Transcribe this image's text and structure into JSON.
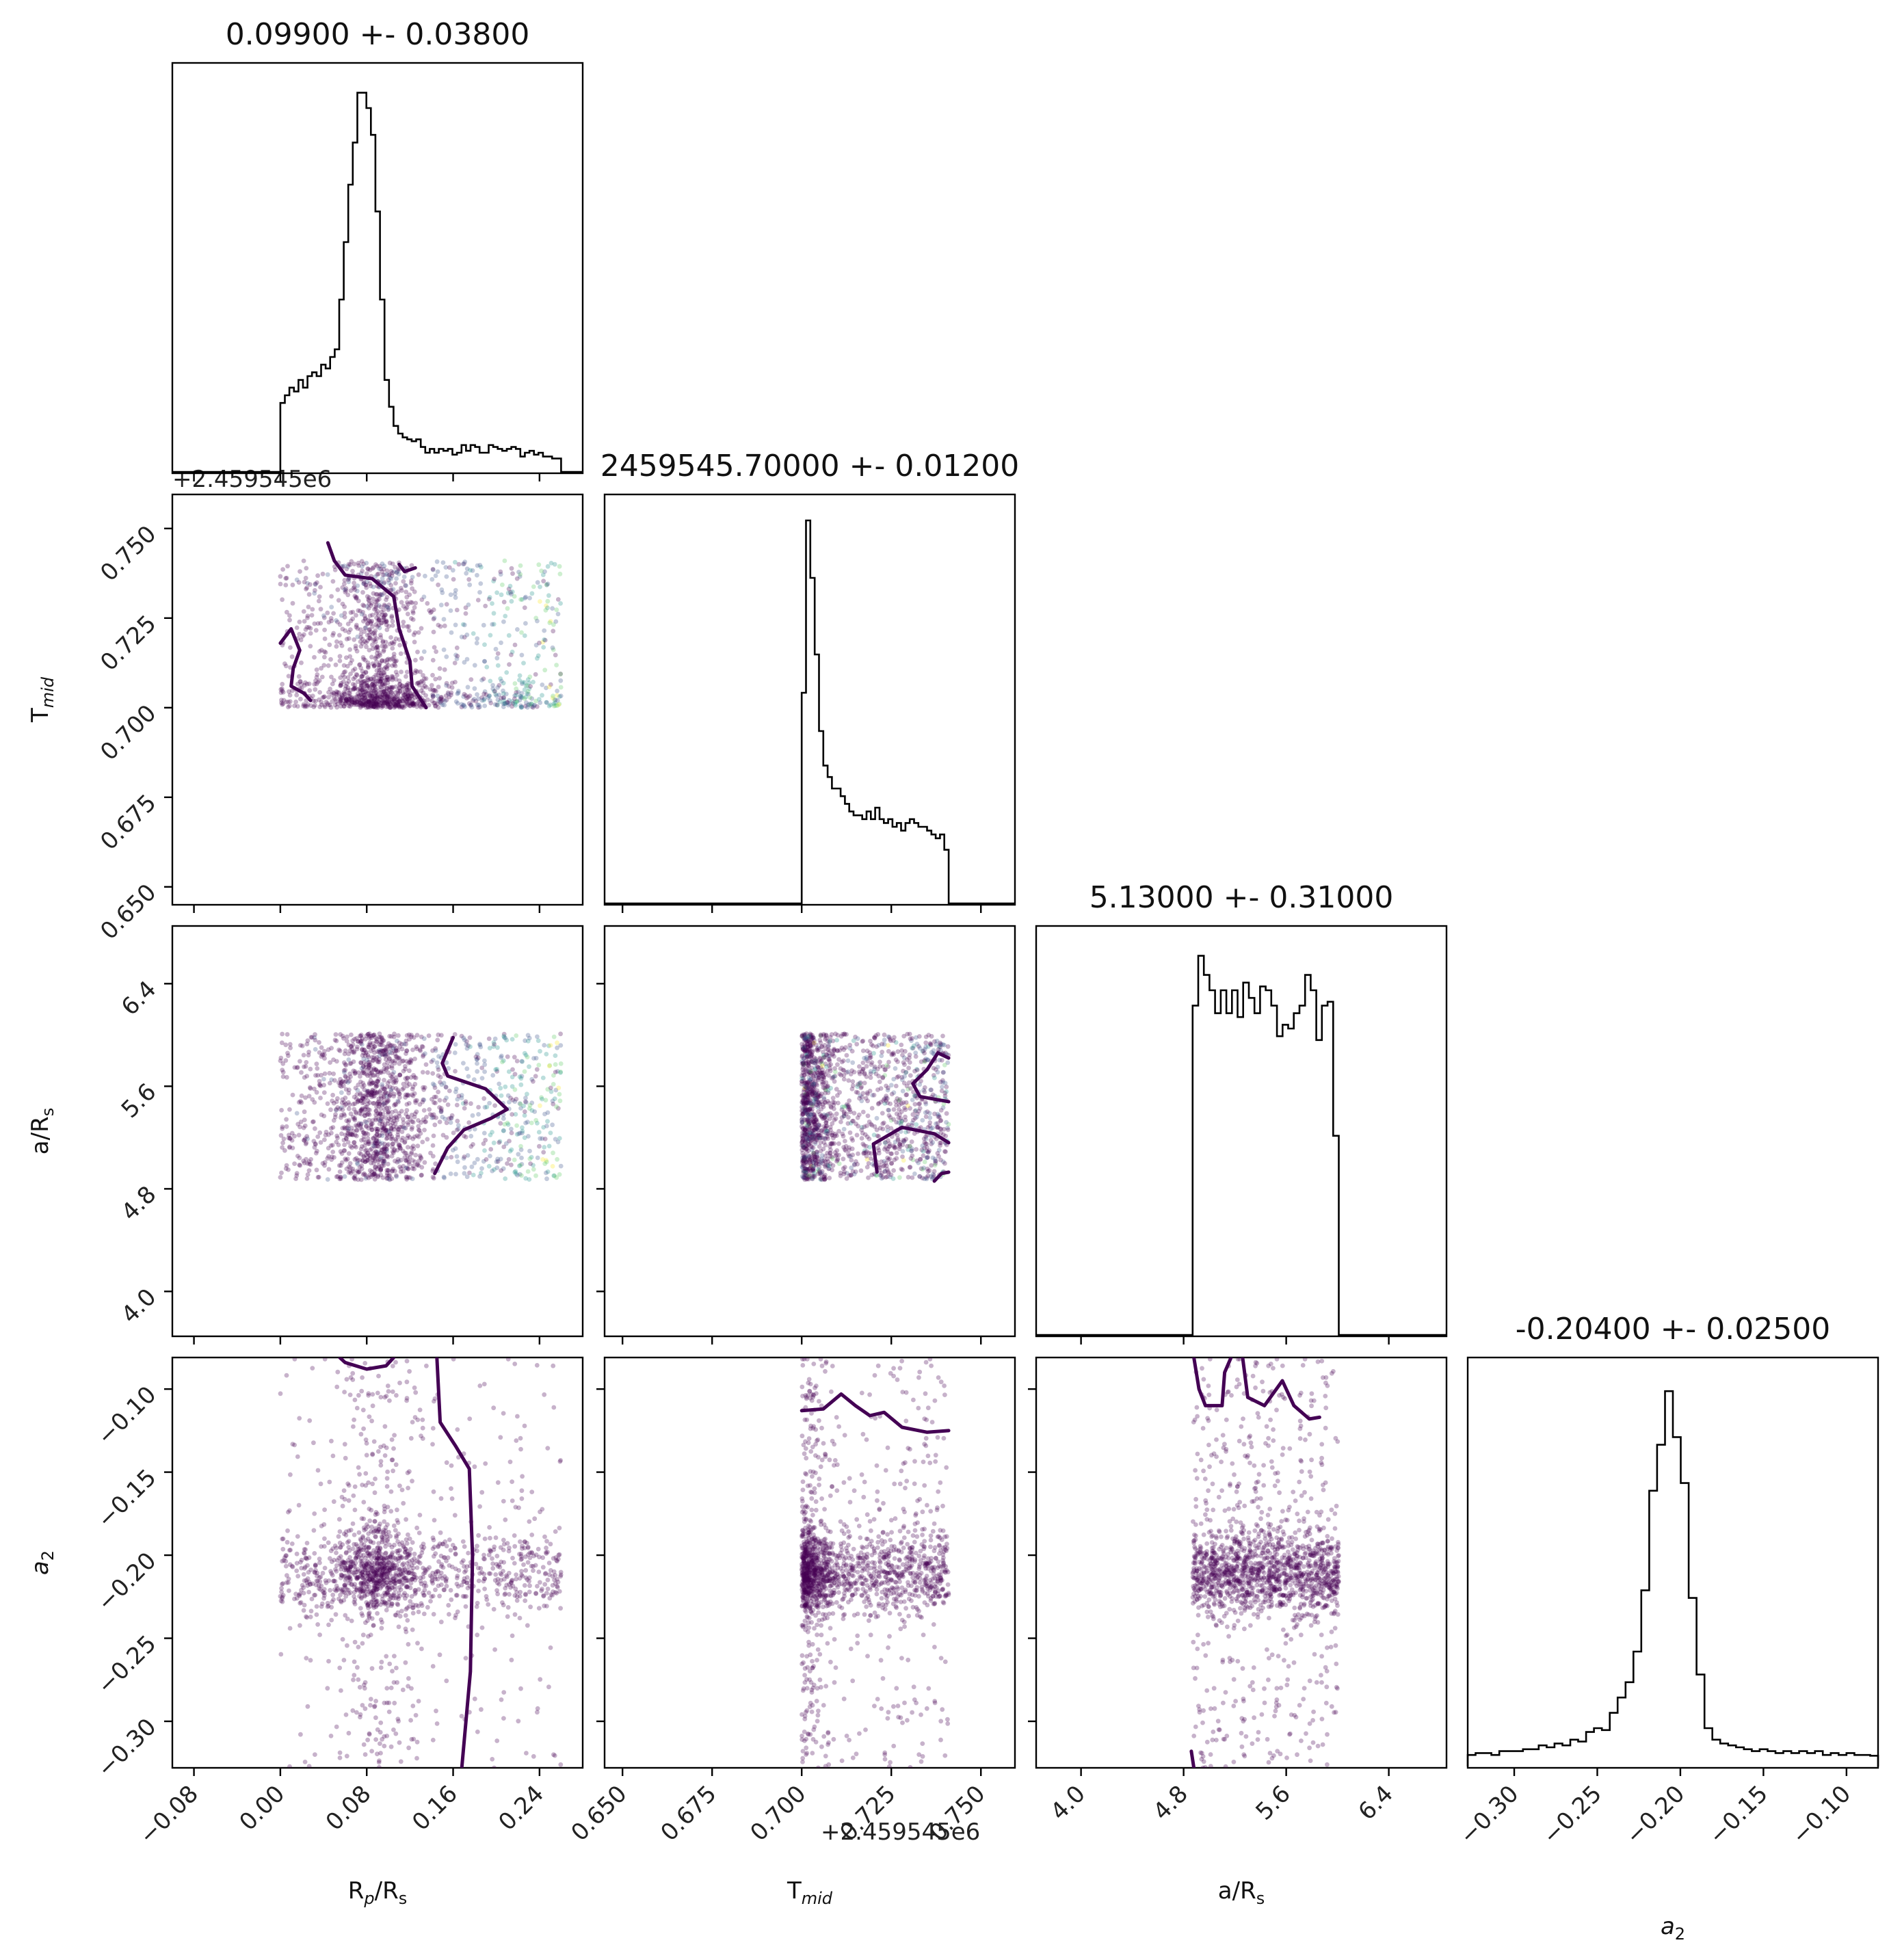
{
  "parameters": [
    {
      "key": "Rp",
      "label": "R_p/R_s",
      "title": "0.09900 +- 0.03800"
    },
    {
      "key": "Tmid",
      "label": "T_mid",
      "title": "2459545.70000 +- 0.01200",
      "offset_text": "+2.459545e6"
    },
    {
      "key": "aRs",
      "label": "a/R_s",
      "title": "5.13000 +- 0.31000"
    },
    {
      "key": "a2",
      "label": "a_2",
      "title": "-0.20400 +- 0.02500"
    }
  ],
  "chart_data": {
    "type": "corner",
    "colors": {
      "contour": "#440154",
      "points": [
        "#440154",
        "#3b528b",
        "#21918c",
        "#5ec962",
        "#fde725"
      ]
    },
    "ranges": {
      "Rp": [
        -0.1,
        0.28
      ],
      "Tmid": [
        0.645,
        0.7595
      ],
      "aRs": [
        3.65,
        6.85
      ],
      "a2": [
        -0.328,
        -0.081
      ]
    },
    "ticks": {
      "Rp": [
        "-0.08",
        "0.00",
        "0.08",
        "0.16",
        "0.24"
      ],
      "Tmid": [
        "0.650",
        "0.675",
        "0.700",
        "0.725",
        "0.750"
      ],
      "aRs": [
        "4.0",
        "4.8",
        "5.6",
        "6.4"
      ],
      "a2": [
        "-0.30",
        "-0.25",
        "-0.20",
        "-0.15",
        "-0.10"
      ]
    },
    "uniform_bounds": {
      "Rp": [
        0.0,
        0.26
      ],
      "Tmid": [
        0.7,
        0.741
      ],
      "aRs": [
        4.87,
        6.01
      ]
    },
    "histograms": {
      "Rp": {
        "range": [
          0.0,
          0.26
        ],
        "values": [
          0.18,
          0.2,
          0.22,
          0.21,
          0.24,
          0.22,
          0.25,
          0.26,
          0.25,
          0.28,
          0.27,
          0.3,
          0.32,
          0.45,
          0.6,
          0.75,
          0.86,
          0.99,
          0.99,
          0.95,
          0.88,
          0.68,
          0.45,
          0.24,
          0.17,
          0.12,
          0.1,
          0.09,
          0.085,
          0.08,
          0.085,
          0.065,
          0.05,
          0.06,
          0.05,
          0.06,
          0.055,
          0.06,
          0.045,
          0.05,
          0.07,
          0.055,
          0.07,
          0.065,
          0.05,
          0.05,
          0.07,
          0.065,
          0.06,
          0.055,
          0.06,
          0.065,
          0.06,
          0.04,
          0.05,
          0.055,
          0.045,
          0.05,
          0.04,
          0.04,
          0.035,
          0.035
        ]
      },
      "Tmid": {
        "range": [
          0.7,
          0.741
        ],
        "values": [
          0.55,
          1.0,
          0.85,
          0.65,
          0.45,
          0.36,
          0.33,
          0.3,
          0.3,
          0.28,
          0.26,
          0.24,
          0.23,
          0.23,
          0.22,
          0.24,
          0.22,
          0.25,
          0.22,
          0.21,
          0.22,
          0.2,
          0.21,
          0.19,
          0.21,
          0.22,
          0.21,
          0.2,
          0.2,
          0.19,
          0.18,
          0.17,
          0.18,
          0.14
        ]
      },
      "aRs": {
        "range": [
          4.87,
          6.01
        ],
        "values": [
          0.86,
          0.99,
          0.94,
          0.9,
          0.84,
          0.9,
          0.84,
          0.9,
          0.83,
          0.92,
          0.88,
          0.84,
          0.91,
          0.9,
          0.86,
          0.78,
          0.81,
          0.8,
          0.84,
          0.86,
          0.94,
          0.9,
          0.77,
          0.86,
          0.87,
          0.52
        ]
      },
      "a2": {
        "range": [
          -0.328,
          -0.081
        ],
        "values": [
          0.03,
          0.035,
          0.035,
          0.03,
          0.04,
          0.04,
          0.04,
          0.045,
          0.045,
          0.055,
          0.05,
          0.06,
          0.055,
          0.07,
          0.065,
          0.09,
          0.1,
          0.095,
          0.14,
          0.18,
          0.22,
          0.3,
          0.46,
          0.72,
          0.84,
          0.98,
          0.86,
          0.74,
          0.44,
          0.24,
          0.1,
          0.07,
          0.06,
          0.055,
          0.05,
          0.045,
          0.04,
          0.045,
          0.04,
          0.035,
          0.04,
          0.035,
          0.04,
          0.035,
          0.04,
          0.03,
          0.035,
          0.03,
          0.035,
          0.03,
          0.03,
          0.028
        ]
      }
    },
    "density_peaks": {
      "Rp": 0.089,
      "Tmid": 0.7015,
      "a2": -0.211
    }
  }
}
